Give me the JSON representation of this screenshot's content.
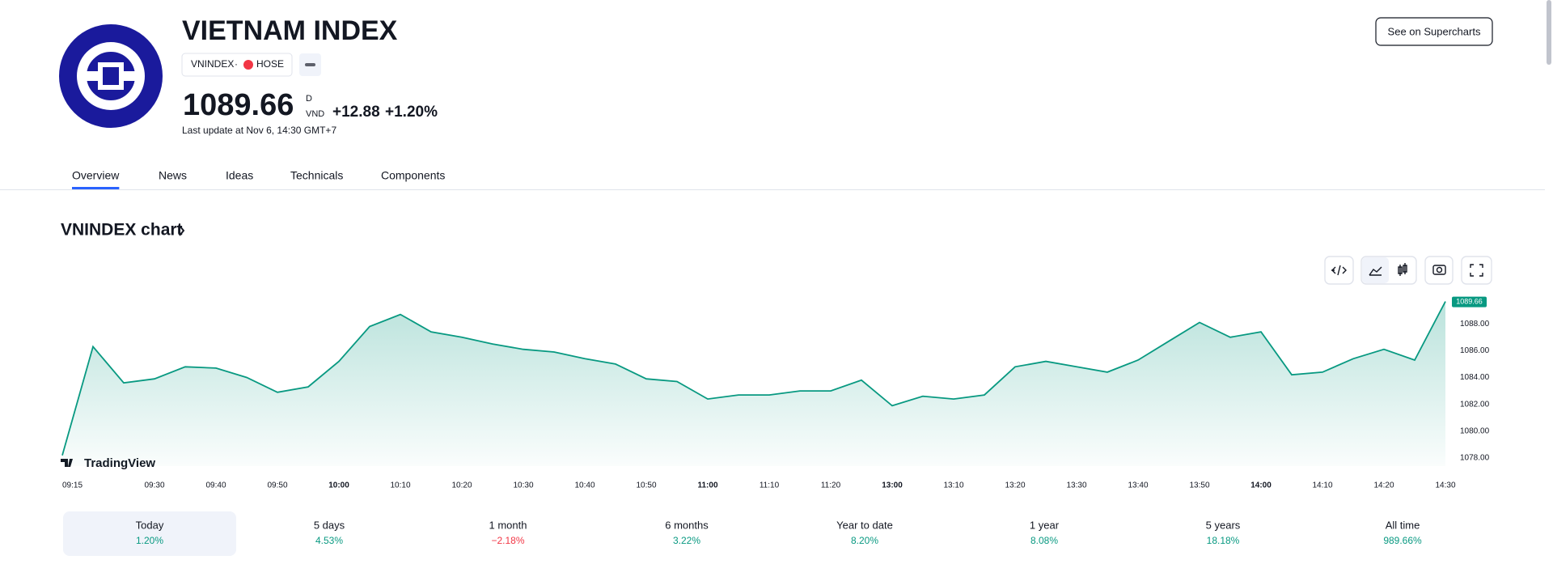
{
  "header": {
    "title": "VIETNAM INDEX",
    "symbol": "VNINDEX",
    "exchange": "HOSE",
    "price": "1089.66",
    "price_suffix": "D",
    "currency": "VND",
    "change": "+12.88",
    "change_percent": "+1.20%",
    "last_update": "Last update at Nov 6, 14:30 GMT+7",
    "button": "See on Supercharts"
  },
  "tabs": [
    "Overview",
    "News",
    "Ideas",
    "Technicals",
    "Components"
  ],
  "chart_title": "VNINDEX chart",
  "brand": "TradingView",
  "chart_data": {
    "type": "area",
    "color": "#089981",
    "x": [
      "09:15",
      "09:20",
      "09:25",
      "09:30",
      "09:35",
      "09:40",
      "09:45",
      "09:50",
      "09:55",
      "10:00",
      "10:05",
      "10:10",
      "10:15",
      "10:20",
      "10:25",
      "10:30",
      "10:35",
      "10:40",
      "10:45",
      "10:50",
      "10:55",
      "11:00",
      "11:05",
      "11:10",
      "11:15",
      "11:20",
      "11:25",
      "13:00",
      "13:05",
      "13:10",
      "13:15",
      "13:20",
      "13:25",
      "13:30",
      "13:35",
      "13:40",
      "13:45",
      "13:50",
      "13:55",
      "14:00",
      "14:05",
      "14:10",
      "14:15",
      "14:20",
      "14:25",
      "14:30"
    ],
    "values": [
      1078.2,
      1086.3,
      1083.6,
      1083.9,
      1084.8,
      1084.7,
      1084.0,
      1082.9,
      1083.3,
      1085.2,
      1087.8,
      1088.7,
      1087.4,
      1087.0,
      1086.5,
      1086.1,
      1085.9,
      1085.4,
      1085.0,
      1083.9,
      1083.7,
      1082.4,
      1082.7,
      1082.7,
      1083.0,
      1083.0,
      1083.8,
      1081.9,
      1082.6,
      1082.4,
      1082.7,
      1084.8,
      1085.2,
      1084.8,
      1084.4,
      1085.3,
      1086.7,
      1088.1,
      1087.0,
      1087.4,
      1084.2,
      1084.4,
      1085.4,
      1086.1,
      1085.3,
      1089.66
    ],
    "ylim": [
      1077.4,
      1090
    ],
    "yticks": [
      {
        "value": 1078,
        "label": "1078.00"
      },
      {
        "value": 1080,
        "label": "1080.00"
      },
      {
        "value": 1082,
        "label": "1082.00"
      },
      {
        "value": 1084,
        "label": "1084.00"
      },
      {
        "value": 1086,
        "label": "1086.00"
      },
      {
        "value": 1088,
        "label": "1088.00"
      }
    ],
    "xticks": [
      "09:15",
      "09:30",
      "09:40",
      "09:50",
      "10:00",
      "10:10",
      "10:20",
      "10:30",
      "10:40",
      "10:50",
      "11:00",
      "11:10",
      "11:20",
      "13:00",
      "13:10",
      "13:20",
      "13:30",
      "13:40",
      "13:50",
      "14:00",
      "14:10",
      "14:20",
      "14:30"
    ],
    "grid": false
  },
  "periods": [
    {
      "label": "Today",
      "change": "1.20%"
    },
    {
      "label": "5 days",
      "change": "4.53%"
    },
    {
      "label": "1 month",
      "change": "−2.18%"
    },
    {
      "label": "6 months",
      "change": "3.22%"
    },
    {
      "label": "Year to date",
      "change": "8.20%"
    },
    {
      "label": "1 year",
      "change": "8.08%"
    },
    {
      "label": "5 years",
      "change": "18.18%"
    },
    {
      "label": "All time",
      "change": "989.66%"
    }
  ]
}
